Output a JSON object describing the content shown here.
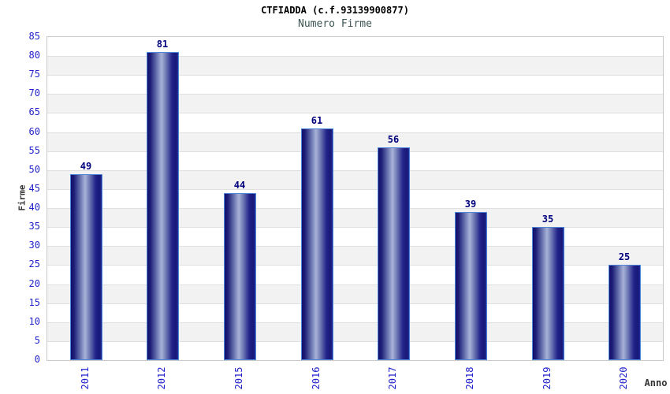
{
  "header": {
    "title": "CTFIADDA (c.f.93139900877)",
    "subtitle": "Numero Firme"
  },
  "chart_data": {
    "type": "bar",
    "title": "CTFIADDA (c.f.93139900877)",
    "subtitle": "Numero Firme",
    "categories": [
      "2011",
      "2012",
      "2015",
      "2016",
      "2017",
      "2018",
      "2019",
      "2020"
    ],
    "values": [
      49,
      81,
      44,
      61,
      56,
      39,
      35,
      25
    ],
    "xlabel": "Anno",
    "ylabel": "Firme",
    "ylim": [
      0,
      85
    ],
    "ytick_step": 5,
    "grid": "horizontal alternating bands",
    "legend": "none",
    "value_labels_shown": true,
    "colors": {
      "bar_dark": "#10106a",
      "bar_highlight": "#a9b3d8",
      "bar_border": "#4f86d8",
      "tick_label_blue": "#2222cc",
      "value_label_navy": "#00007d",
      "subtitle_color": "#3d5454",
      "axis_title_color": "#333333",
      "band_white": "#ffffff",
      "band_gray": "#f2f2f2",
      "gridline": "#e0e0e0",
      "plot_border": "#c9c9c9",
      "background": "#ffffff"
    }
  }
}
